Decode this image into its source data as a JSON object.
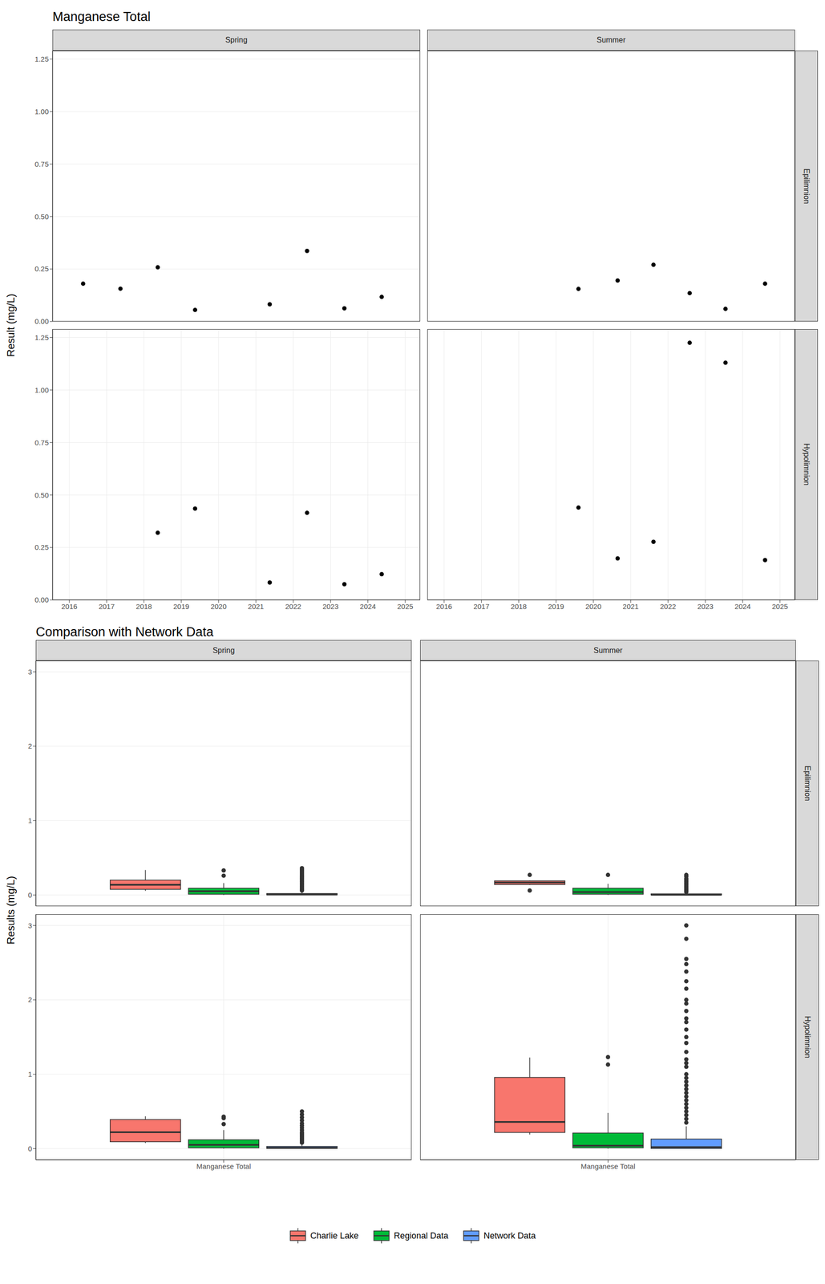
{
  "chart_data": [
    {
      "type": "scatter",
      "title": "Manganese Total",
      "y_label": "Result (mg/L)",
      "columns": [
        "Spring",
        "Summer"
      ],
      "rows": [
        "Epilimnion",
        "Hypolimnion"
      ],
      "xlim": [
        2015.55,
        2025.4
      ],
      "xticks": [
        2016,
        2017,
        2018,
        2019,
        2020,
        2021,
        2022,
        2023,
        2024,
        2025
      ],
      "ylim": [
        0,
        1.29
      ],
      "yticks": [
        {
          "value": 0,
          "label": "0.00"
        },
        0.25,
        {
          "value": 0.5,
          "label": "0.50"
        },
        0.75,
        {
          "value": 1,
          "label": "1.00"
        },
        1.25
      ],
      "grid": true,
      "color": "#000000",
      "marker": "circle",
      "panels": [
        {
          "column": "Spring",
          "row": "Epilimnion",
          "x": [
            2016.37,
            2017.37,
            2018.37,
            2019.37,
            2021.37,
            2022.37,
            2023.37,
            2024.37
          ],
          "values": [
            0.18,
            0.156,
            0.258,
            0.055,
            0.082,
            0.336,
            0.0625,
            0.117
          ]
        },
        {
          "column": "Summer",
          "row": "Epilimnion",
          "x": [
            2019.6,
            2020.65,
            2021.61,
            2022.58,
            2023.54,
            2024.6
          ],
          "values": [
            0.155,
            0.195,
            0.27,
            0.135,
            0.06,
            0.18
          ]
        },
        {
          "column": "Spring",
          "row": "Hypolimnion",
          "x": [
            2018.37,
            2019.37,
            2021.37,
            2022.37,
            2023.37,
            2024.37
          ],
          "values": [
            0.32,
            0.435,
            0.083,
            0.415,
            0.075,
            0.123
          ]
        },
        {
          "column": "Summer",
          "row": "Hypolimnion",
          "x": [
            2019.6,
            2020.65,
            2021.61,
            2022.58,
            2023.54,
            2024.6
          ],
          "values": [
            0.44,
            0.198,
            0.277,
            1.225,
            1.13,
            0.19
          ]
        }
      ]
    },
    {
      "type": "box",
      "title": "Comparison with Network Data",
      "y_label": "Results (mg/L)",
      "columns": [
        "Spring",
        "Summer"
      ],
      "rows": [
        "Epilimnion",
        "Hypolimnion"
      ],
      "xlim": [
        0.4,
        1.6
      ],
      "xticks": [
        {
          "value": 1,
          "label": "Manganese Total"
        }
      ],
      "ylim": [
        -0.15,
        3.15
      ],
      "yticks": [
        0,
        1,
        2,
        3
      ],
      "grid": true,
      "legend": "bottom",
      "series": [
        {
          "name": "Charlie Lake",
          "color": "#F8766D"
        },
        {
          "name": "Regional Data",
          "color": "#00BA38"
        },
        {
          "name": "Network Data",
          "color": "#619CFF"
        }
      ],
      "panels": [
        {
          "column": "Spring",
          "row": "Epilimnion",
          "boxes": [
            {
              "whisker_low": 0.055,
              "q1": 0.077,
              "median": 0.137,
              "q3": 0.2,
              "whisker_high": 0.336,
              "outliers": []
            },
            {
              "whisker_low": 0,
              "q1": 0.01,
              "median": 0.05,
              "q3": 0.09,
              "whisker_high": 0.16,
              "outliers": [
                0.26,
                0.33
              ]
            },
            {
              "whisker_low": 0,
              "q1": 0.002,
              "median": 0.005,
              "q3": 0.02,
              "whisker_high": 0.05,
              "outliers": [
                0.06,
                0.08,
                0.1,
                0.12,
                0.14,
                0.16,
                0.18,
                0.2,
                0.22,
                0.24,
                0.26,
                0.28,
                0.3,
                0.32,
                0.34,
                0.36
              ]
            }
          ]
        },
        {
          "column": "Summer",
          "row": "Epilimnion",
          "boxes": [
            {
              "whisker_low": 0.135,
              "q1": 0.14,
              "median": 0.1675,
              "q3": 0.191,
              "whisker_high": 0.195,
              "outliers": [
                0.06,
                0.27
              ]
            },
            {
              "whisker_low": 0,
              "q1": 0.01,
              "median": 0.04,
              "q3": 0.09,
              "whisker_high": 0.15,
              "outliers": [
                0.27
              ]
            },
            {
              "whisker_low": 0,
              "q1": 0.001,
              "median": 0.003,
              "q3": 0.015,
              "whisker_high": 0.035,
              "outliers": [
                0.04,
                0.06,
                0.08,
                0.1,
                0.12,
                0.14,
                0.16,
                0.18,
                0.2,
                0.22,
                0.25,
                0.27
              ]
            }
          ]
        },
        {
          "column": "Spring",
          "row": "Hypolimnion",
          "boxes": [
            {
              "whisker_low": 0.075,
              "q1": 0.093,
              "median": 0.2215,
              "q3": 0.391,
              "whisker_high": 0.435,
              "outliers": []
            },
            {
              "whisker_low": 0,
              "q1": 0.01,
              "median": 0.05,
              "q3": 0.12,
              "whisker_high": 0.25,
              "outliers": [
                0.33,
                0.41,
                0.43
              ]
            },
            {
              "whisker_low": 0,
              "q1": 0.003,
              "median": 0.01,
              "q3": 0.03,
              "whisker_high": 0.07,
              "outliers": [
                0.08,
                0.1,
                0.12,
                0.14,
                0.16,
                0.18,
                0.2,
                0.22,
                0.25,
                0.28,
                0.31,
                0.34,
                0.38,
                0.42,
                0.46,
                0.5
              ]
            }
          ]
        },
        {
          "column": "Summer",
          "row": "Hypolimnion",
          "boxes": [
            {
              "whisker_low": 0.19,
              "q1": 0.218,
              "median": 0.3585,
              "q3": 0.9575,
              "whisker_high": 1.225,
              "outliers": []
            },
            {
              "whisker_low": 0,
              "q1": 0.01,
              "median": 0.04,
              "q3": 0.21,
              "whisker_high": 0.48,
              "outliers": [
                1.13,
                1.23
              ]
            },
            {
              "whisker_low": 0,
              "q1": 0.003,
              "median": 0.02,
              "q3": 0.13,
              "whisker_high": 0.3,
              "outliers": [
                0.35,
                0.4,
                0.45,
                0.5,
                0.55,
                0.6,
                0.65,
                0.7,
                0.75,
                0.8,
                0.85,
                0.9,
                0.95,
                1.0,
                1.1,
                1.15,
                1.2,
                1.3,
                1.42,
                1.5,
                1.6,
                1.7,
                1.75,
                1.85,
                1.95,
                2.0,
                2.15,
                2.25,
                2.38,
                2.48,
                2.55,
                2.82,
                3.0
              ]
            }
          ]
        }
      ]
    }
  ]
}
